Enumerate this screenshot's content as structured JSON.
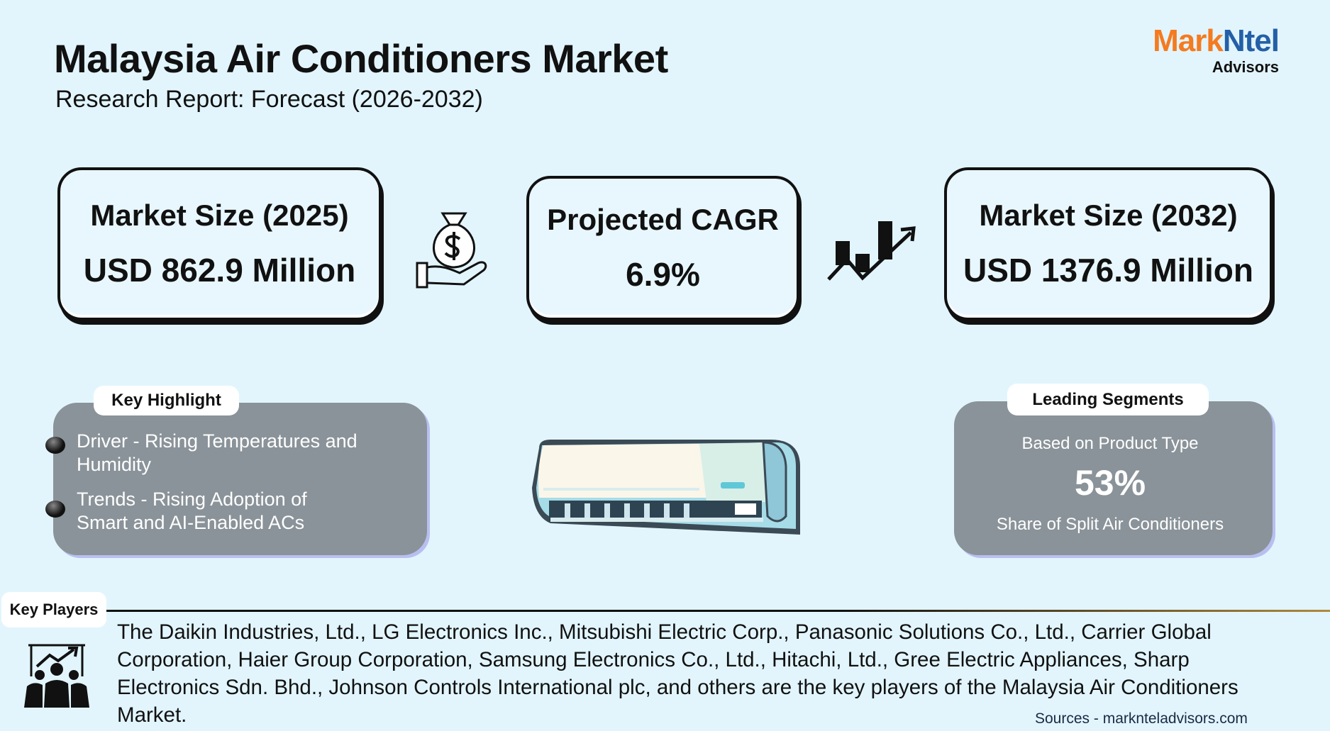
{
  "header": {
    "title": "Malaysia Air Conditioners Market",
    "subtitle": "Research Report: Forecast (2026-2032)"
  },
  "logo": {
    "part1": "Mark",
    "part2": "Ntel",
    "part3": "Advisors",
    "colors": {
      "orange": "#f47b20",
      "blue": "#2460a7"
    }
  },
  "stats": [
    {
      "label": "Market Size (2025)",
      "value": "USD 862.9 Million"
    },
    {
      "label": "Projected CAGR",
      "value": "6.9%"
    },
    {
      "label": "Market Size (2032)",
      "value": "USD 1376.9 Million"
    }
  ],
  "highlights": {
    "title": "Key Highlight",
    "items": [
      "Driver - Rising Temperatures and Humidity",
      "Trends - Rising Adoption of Smart and AI-Enabled ACs"
    ]
  },
  "segments": {
    "title": "Leading Segments",
    "basis": "Based on Product Type",
    "value": "53%",
    "desc": "Share of Split Air Conditioners"
  },
  "key_players": {
    "title": "Key Players",
    "text": "The Daikin Industries, Ltd., LG Electronics Inc., Mitsubishi Electric Corp., Panasonic Solutions Co., Ltd., Carrier Global Corporation, Haier Group Corporation, Samsung Electronics Co., Ltd., Hitachi, Ltd., Gree Electric Appliances, Sharp Electronics Sdn. Bhd., Johnson Controls International plc, and others are the key players of the Malaysia Air Conditioners Market."
  },
  "footer": {
    "sources": "Sources - marknteladvisors.com"
  }
}
